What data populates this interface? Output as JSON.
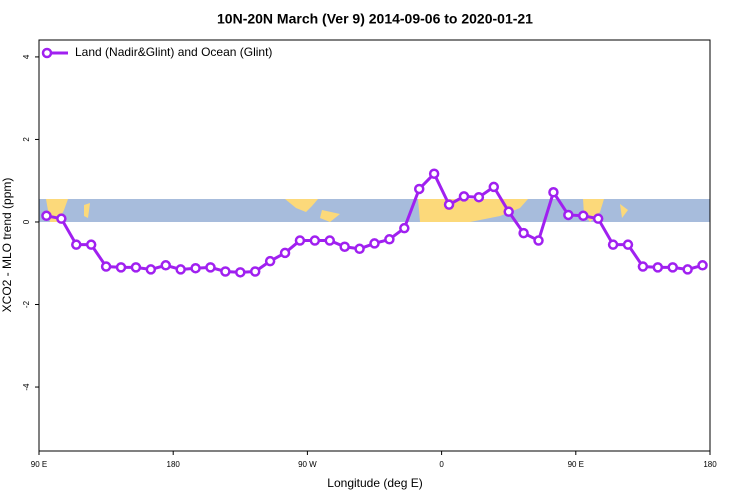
{
  "chart_data": {
    "type": "line",
    "title": "10N-20N March (Ver 9)   2014-09-06 to 2020-01-21",
    "x_label": "Longitude (deg E)",
    "y_label": "XCO2 - MLO trend (ppm)",
    "x": [
      95,
      105,
      115,
      125,
      135,
      145,
      155,
      165,
      175,
      185,
      195,
      205,
      215,
      225,
      235,
      245,
      255,
      265,
      275,
      285,
      295,
      305,
      315,
      325,
      335,
      345,
      355,
      365,
      375,
      385,
      395,
      405,
      415,
      425,
      435,
      445,
      455,
      465,
      475,
      485,
      495,
      505,
      515,
      525,
      535
    ],
    "series": [
      {
        "name": "Land (Nadir&Glint) and Ocean (Glint)",
        "color": "#a020f0",
        "values": [
          0.15,
          0.08,
          -0.55,
          -0.55,
          -1.08,
          -1.1,
          -1.1,
          -1.15,
          -1.05,
          -1.15,
          -1.12,
          -1.1,
          -1.2,
          -1.22,
          -1.2,
          -0.95,
          -0.75,
          -0.45,
          -0.45,
          -0.45,
          -0.6,
          -0.65,
          -0.52,
          -0.42,
          -0.15,
          0.8,
          1.17,
          0.42,
          0.62,
          0.6,
          0.85,
          0.25,
          -0.27,
          -0.45,
          0.72,
          0.17,
          0.15,
          0.08,
          -0.55,
          -0.55,
          -1.08,
          -1.1,
          -1.1,
          -1.15,
          -1.05
        ]
      }
    ],
    "xlim": [
      90,
      540
    ],
    "xticks": [
      {
        "value": 90,
        "label": "90 E"
      },
      180,
      {
        "value": 270,
        "label": "90 W"
      },
      {
        "value": 360,
        "label": "0"
      },
      {
        "value": 450,
        "label": "90 E"
      },
      {
        "value": 540,
        "label": "180"
      }
    ],
    "ylim": [
      -5.55,
      4.41
    ],
    "yticks": [
      -4,
      -2,
      0,
      2,
      4
    ],
    "legend": "top-left"
  }
}
